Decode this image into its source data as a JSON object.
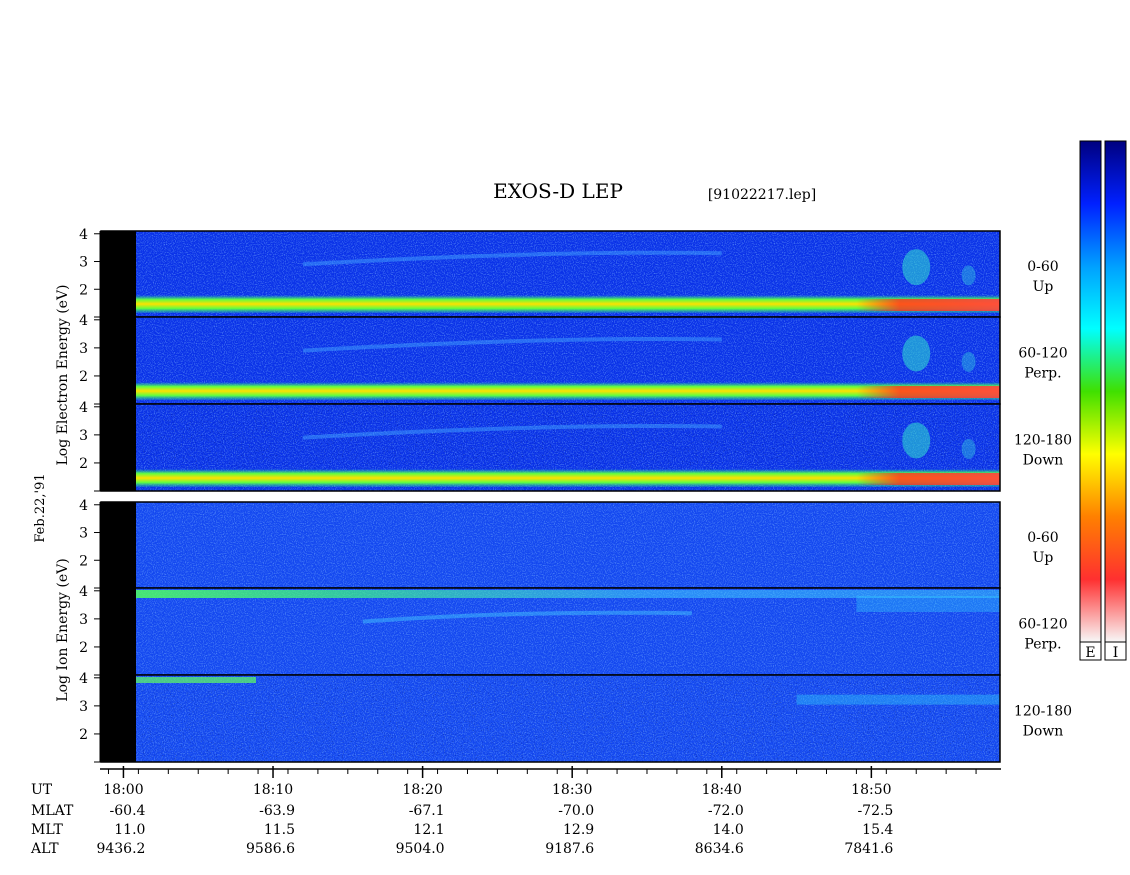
{
  "chart_data": {
    "type": "heatmap",
    "title": "EXOS-D LEP",
    "file": "[91022217.lep]",
    "date_label": "Feb.22,'91",
    "groups": [
      {
        "name": "electron",
        "ylabel": "Log  Electron  Energy (eV)",
        "yrange": [
          1,
          4.1
        ],
        "yticks": [
          "2",
          "3",
          "4"
        ],
        "panels": [
          {
            "angle": "0-60",
            "dir": "Up"
          },
          {
            "angle": "60-120",
            "dir": "Perp."
          },
          {
            "angle": "120-180",
            "dir": "Down"
          }
        ]
      },
      {
        "name": "ion",
        "ylabel": "Log  Ion  Energy (eV)",
        "yrange": [
          1,
          4.1
        ],
        "yticks": [
          "2",
          "3",
          "4"
        ],
        "panels": [
          {
            "angle": "0-60",
            "dir": "Up"
          },
          {
            "angle": "60-120",
            "dir": "Perp."
          },
          {
            "angle": "120-180",
            "dir": "Down"
          }
        ]
      }
    ],
    "time_axis": {
      "label": "UT",
      "range_min": [
        -1.5,
        58.6
      ],
      "labeled_ticks_min": [
        0,
        10,
        20,
        30,
        40,
        50
      ],
      "minor_tick_step_min": 2,
      "tick_labels": [
        "18:00",
        "18:10",
        "18:20",
        "18:30",
        "18:40",
        "18:50"
      ]
    },
    "ephemeris": [
      {
        "label": "MLAT",
        "values": [
          "-60.4",
          "-63.9",
          "-67.1",
          "-70.0",
          "-72.0",
          "-72.5"
        ]
      },
      {
        "label": "MLT",
        "values": [
          "11.0",
          "11.5",
          "12.1",
          "12.9",
          "14.0",
          "15.4"
        ]
      },
      {
        "label": "ALT",
        "values": [
          "9436.2",
          "9586.6",
          "9504.0",
          "9187.6",
          "8634.6",
          "7841.6"
        ]
      }
    ],
    "colorbars": [
      {
        "label": "E",
        "colors": [
          "#f8f8f8",
          "#ff3030",
          "#ff8000",
          "#ffff00",
          "#40e000",
          "#00ffff",
          "#00a0ff",
          "#0020ff",
          "#000080"
        ]
      },
      {
        "label": "I",
        "colors": [
          "#f8f8f8",
          "#ff3030",
          "#ff8000",
          "#ffff00",
          "#40e000",
          "#00ffff",
          "#00a0ff",
          "#0020ff",
          "#000080"
        ]
      }
    ]
  }
}
